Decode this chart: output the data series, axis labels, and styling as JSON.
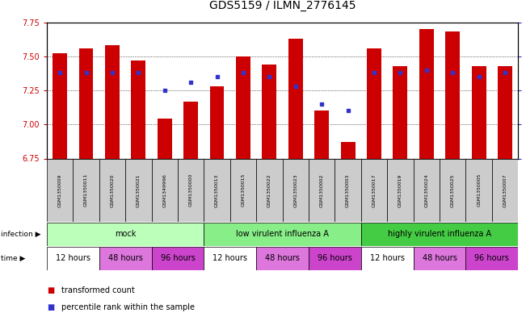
{
  "title": "GDS5159 / ILMN_2776145",
  "samples": [
    "GSM1350009",
    "GSM1350011",
    "GSM1350020",
    "GSM1350021",
    "GSM1349996",
    "GSM1350000",
    "GSM1350013",
    "GSM1350015",
    "GSM1350022",
    "GSM1350023",
    "GSM1350002",
    "GSM1350003",
    "GSM1350017",
    "GSM1350019",
    "GSM1350024",
    "GSM1350025",
    "GSM1350005",
    "GSM1350007"
  ],
  "bar_values": [
    7.52,
    7.56,
    7.58,
    7.47,
    7.04,
    7.17,
    7.28,
    7.5,
    7.44,
    7.63,
    7.1,
    6.87,
    7.56,
    7.43,
    7.7,
    7.68,
    7.43,
    7.43
  ],
  "blue_values": [
    7.38,
    7.38,
    7.38,
    7.38,
    7.25,
    7.31,
    7.35,
    7.38,
    7.35,
    7.28,
    7.15,
    7.1,
    7.38,
    7.38,
    7.4,
    7.38,
    7.35,
    7.38
  ],
  "ylim_left": [
    6.75,
    7.75
  ],
  "ylim_right": [
    0,
    100
  ],
  "yticks_left": [
    6.75,
    7.0,
    7.25,
    7.5,
    7.75
  ],
  "yticks_right": [
    0,
    25,
    50,
    75,
    100
  ],
  "bar_color": "#cc0000",
  "blue_color": "#3333cc",
  "bg_color": "#ffffff",
  "inf_groups": [
    {
      "label": "mock",
      "start": 0,
      "end": 6,
      "color": "#bbffbb"
    },
    {
      "label": "low virulent influenza A",
      "start": 6,
      "end": 12,
      "color": "#88ee88"
    },
    {
      "label": "highly virulent influenza A",
      "start": 12,
      "end": 18,
      "color": "#44cc44"
    }
  ],
  "time_groups": [
    {
      "label": "12 hours",
      "start": 0,
      "end": 2,
      "color": "#ffffff"
    },
    {
      "label": "48 hours",
      "start": 2,
      "end": 4,
      "color": "#dd77dd"
    },
    {
      "label": "96 hours",
      "start": 4,
      "end": 6,
      "color": "#cc44cc"
    },
    {
      "label": "12 hours",
      "start": 6,
      "end": 8,
      "color": "#ffffff"
    },
    {
      "label": "48 hours",
      "start": 8,
      "end": 10,
      "color": "#dd77dd"
    },
    {
      "label": "96 hours",
      "start": 10,
      "end": 12,
      "color": "#cc44cc"
    },
    {
      "label": "12 hours",
      "start": 12,
      "end": 14,
      "color": "#ffffff"
    },
    {
      "label": "48 hours",
      "start": 14,
      "end": 16,
      "color": "#dd77dd"
    },
    {
      "label": "96 hours",
      "start": 16,
      "end": 18,
      "color": "#cc44cc"
    }
  ],
  "sample_bg": "#cccccc",
  "legend_items": [
    {
      "label": "transformed count",
      "color": "#cc0000"
    },
    {
      "label": "percentile rank within the sample",
      "color": "#3333cc"
    }
  ],
  "title_fontsize": 10,
  "axis_fontsize": 7,
  "sample_fontsize": 4.5,
  "row_fontsize": 7
}
